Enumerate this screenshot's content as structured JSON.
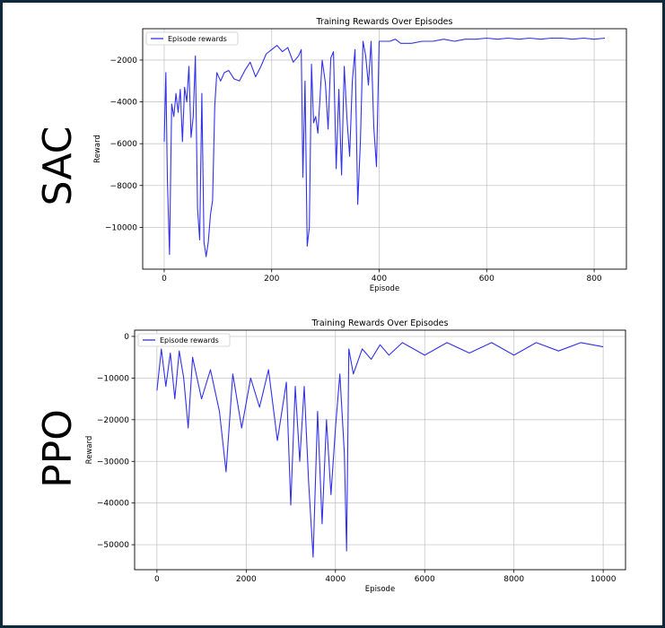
{
  "panels": [
    {
      "side_label": "SAC",
      "chart_data": {
        "type": "line",
        "title": "Training Rewards Over Episodes",
        "xlabel": "Episode",
        "ylabel": "Reward",
        "legend": "top-left",
        "grid": true,
        "xlim": [
          -40,
          860
        ],
        "ylim": [
          -12000,
          -500
        ],
        "xticks": [
          0,
          200,
          400,
          600,
          800
        ],
        "yticks": [
          -10000,
          -8000,
          -6000,
          -4000,
          -2000
        ],
        "series": [
          {
            "name": "Episode rewards",
            "color": "#3232e6",
            "x": [
              0,
              3,
              6,
              10,
              14,
              18,
              22,
              26,
              30,
              34,
              38,
              42,
              46,
              50,
              54,
              58,
              62,
              66,
              70,
              74,
              78,
              82,
              86,
              90,
              94,
              98,
              105,
              112,
              120,
              130,
              140,
              150,
              160,
              170,
              180,
              190,
              200,
              210,
              220,
              230,
              240,
              250,
              255,
              258,
              262,
              266,
              270,
              274,
              278,
              282,
              286,
              290,
              294,
              300,
              305,
              310,
              315,
              320,
              325,
              330,
              335,
              340,
              345,
              350,
              355,
              360,
              365,
              370,
              375,
              380,
              385,
              390,
              395,
              400,
              410,
              420,
              430,
              440,
              460,
              480,
              500,
              520,
              540,
              560,
              580,
              600,
              620,
              640,
              660,
              680,
              700,
              720,
              740,
              760,
              780,
              800,
              820
            ],
            "y": [
              -5900,
              -2600,
              -7700,
              -11300,
              -4100,
              -4700,
              -3600,
              -4500,
              -3400,
              -5900,
              -3300,
              -4000,
              -2300,
              -5700,
              -4700,
              -1800,
              -9100,
              -10600,
              -3600,
              -10700,
              -11400,
              -10700,
              -9400,
              -8700,
              -4200,
              -2600,
              -3000,
              -2600,
              -2500,
              -2900,
              -3000,
              -2500,
              -2100,
              -2800,
              -2300,
              -1700,
              -1500,
              -1300,
              -1600,
              -1400,
              -2100,
              -1800,
              -1500,
              -7600,
              -3000,
              -10900,
              -10000,
              -2200,
              -5000,
              -4700,
              -5500,
              -3800,
              -2000,
              -3100,
              -5300,
              -1900,
              -1600,
              -7200,
              -3400,
              -7500,
              -2300,
              -4800,
              -6600,
              -3000,
              -1500,
              -8900,
              -5900,
              -1100,
              -1800,
              -3200,
              -1100,
              -5200,
              -7100,
              -1100,
              -1100,
              -1100,
              -1000,
              -1200,
              -1200,
              -1100,
              -1100,
              -1000,
              -1100,
              -1000,
              -1000,
              -950,
              -1000,
              -950,
              -1000,
              -950,
              -1000,
              -950,
              -950,
              -1000,
              -950,
              -1000,
              -950
            ]
          }
        ]
      }
    },
    {
      "side_label": "PPO",
      "chart_data": {
        "type": "line",
        "title": "Training Rewards Over Episodes",
        "xlabel": "Episode",
        "ylabel": "Reward",
        "legend": "top-left",
        "grid": true,
        "xlim": [
          -500,
          10500
        ],
        "ylim": [
          -56000,
          1500
        ],
        "xticks": [
          0,
          2000,
          4000,
          6000,
          8000,
          10000
        ],
        "yticks": [
          0,
          -10000,
          -20000,
          -30000,
          -40000,
          -50000
        ],
        "series": [
          {
            "name": "Episode rewards",
            "color": "#3232e6",
            "x": [
              0,
              100,
              200,
              300,
              400,
              500,
              600,
              700,
              800,
              1000,
              1200,
              1400,
              1550,
              1700,
              1900,
              2100,
              2300,
              2500,
              2700,
              2900,
              3000,
              3100,
              3200,
              3300,
              3400,
              3500,
              3600,
              3700,
              3800,
              3900,
              4000,
              4100,
              4200,
              4250,
              4300,
              4400,
              4600,
              4800,
              5000,
              5200,
              5500,
              6000,
              6500,
              7000,
              7500,
              8000,
              8500,
              9000,
              9500,
              10000
            ],
            "y": [
              -13000,
              -3000,
              -12000,
              -4000,
              -15000,
              -3500,
              -10000,
              -22000,
              -5000,
              -15000,
              -8000,
              -18000,
              -32500,
              -9000,
              -22000,
              -10000,
              -17000,
              -8000,
              -25000,
              -11000,
              -40500,
              -12000,
              -30000,
              -12000,
              -35000,
              -53000,
              -18000,
              -45000,
              -20000,
              -38000,
              -22000,
              -9000,
              -28000,
              -51500,
              -3000,
              -9000,
              -3000,
              -5500,
              -2000,
              -4500,
              -1500,
              -4500,
              -1500,
              -4000,
              -1500,
              -4500,
              -1500,
              -3500,
              -1500,
              -2500
            ]
          }
        ]
      }
    }
  ]
}
